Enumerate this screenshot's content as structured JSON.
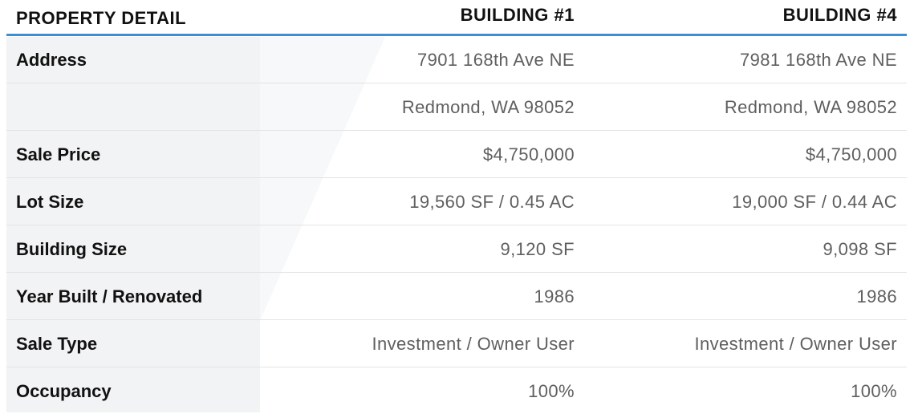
{
  "header": {
    "label": "PROPERTY DETAIL",
    "building_1": "BUILDING #1",
    "building_4": "BUILDING #4"
  },
  "rows": [
    {
      "label": "Address",
      "b1": "7901 168th Ave NE",
      "b4": "7981 168th Ave NE"
    },
    {
      "label": "",
      "b1": "Redmond, WA  98052",
      "b4": "Redmond, WA  98052"
    },
    {
      "label": "Sale Price",
      "b1": "$4,750,000",
      "b4": "$4,750,000"
    },
    {
      "label": "Lot Size",
      "b1": "19,560 SF / 0.45 AC",
      "b4": "19,000 SF / 0.44 AC"
    },
    {
      "label": "Building Size",
      "b1": "9,120 SF",
      "b4": "9,098 SF"
    },
    {
      "label": "Year Built / Renovated",
      "b1": "1986",
      "b4": "1986"
    },
    {
      "label": "Sale Type",
      "b1": "Investment / Owner User",
      "b4": "Investment / Owner User"
    },
    {
      "label": "Occupancy",
      "b1": "100%",
      "b4": "100%"
    }
  ],
  "colors": {
    "accent": "#3b8fd6",
    "label_text": "#111111",
    "value_text": "#5f5f5f",
    "label_column_bg": "#f2f3f4",
    "divider": "#e4e4e4"
  }
}
